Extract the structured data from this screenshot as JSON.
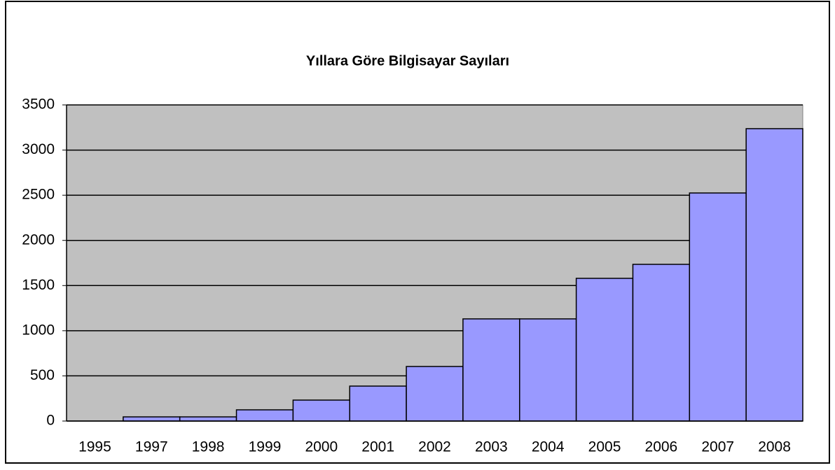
{
  "chart_data": {
    "type": "bar",
    "title": "Yıllara Göre Bilgisayar Sayıları",
    "categories": [
      "1995",
      "1997",
      "1998",
      "1999",
      "2000",
      "2001",
      "2002",
      "2003",
      "2004",
      "2005",
      "2006",
      "2007",
      "2008"
    ],
    "values": [
      0,
      46,
      46,
      124,
      232,
      387,
      604,
      1131,
      1131,
      1580,
      1735,
      2525,
      3237
    ],
    "color": "#9999ff",
    "ylim": [
      0,
      3500
    ],
    "yticks": [
      0,
      500,
      1000,
      1500,
      2000,
      2500,
      3000,
      3500
    ],
    "grid": true
  }
}
